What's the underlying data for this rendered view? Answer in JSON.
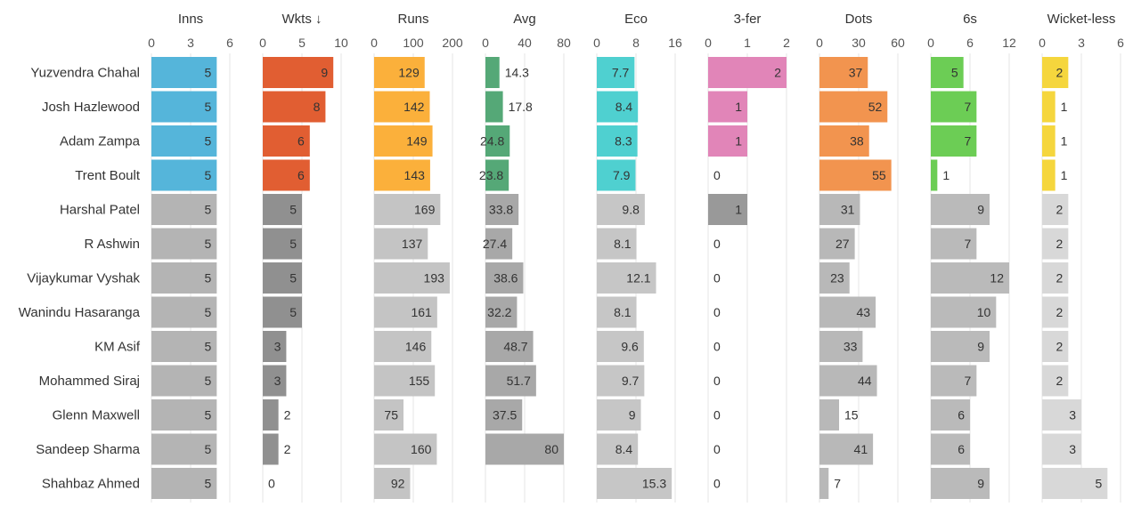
{
  "chart_data": {
    "type": "table",
    "players": [
      "Yuzvendra Chahal",
      "Josh Hazlewood",
      "Adam Zampa",
      "Trent Boult",
      "Harshal Patel",
      "R Ashwin",
      "Vijaykumar Vyshak",
      "Wanindu Hasaranga",
      "KM Asif",
      "Mohammed Siraj",
      "Glenn Maxwell",
      "Sandeep Sharma",
      "Shahbaz Ahmed"
    ],
    "columns": [
      {
        "label": "Inns",
        "max": 6,
        "ticks": [
          0,
          3,
          6
        ],
        "labels": [
          "0",
          "3",
          "6"
        ],
        "values": [
          5,
          5,
          5,
          5,
          5,
          5,
          5,
          5,
          5,
          5,
          5,
          5,
          5
        ],
        "display": [
          "5",
          "5",
          "5",
          "5",
          "5",
          "5",
          "5",
          "5",
          "5",
          "5",
          "5",
          "5",
          "5"
        ],
        "highlight_color": "#55b5da",
        "gray_colors": [
          "#b4b4b4"
        ]
      },
      {
        "label": "Wkts ↓",
        "max": 10,
        "ticks": [
          0,
          5,
          10
        ],
        "labels": [
          "0",
          "5",
          "10"
        ],
        "values": [
          9,
          8,
          6,
          6,
          5,
          5,
          5,
          5,
          3,
          3,
          2,
          2,
          0
        ],
        "display": [
          "9",
          "8",
          "6",
          "6",
          "5",
          "5",
          "5",
          "5",
          "3",
          "3",
          "2",
          "2",
          "0"
        ],
        "highlight_color": "#e15e32",
        "gray_colors": [
          "#909090"
        ]
      },
      {
        "label": "Runs",
        "max": 200,
        "ticks": [
          0,
          100,
          200
        ],
        "labels": [
          "0",
          "100",
          "200"
        ],
        "values": [
          129,
          142,
          149,
          143,
          169,
          137,
          193,
          161,
          146,
          155,
          75,
          160,
          92
        ],
        "display": [
          "129",
          "142",
          "149",
          "143",
          "169",
          "137",
          "193",
          "161",
          "146",
          "155",
          "75",
          "160",
          "92"
        ],
        "highlight_color": "#fbb03b",
        "gray_colors": [
          "#c4c4c4"
        ]
      },
      {
        "label": "Avg",
        "max": 80,
        "ticks": [
          0,
          40,
          80
        ],
        "labels": [
          "0",
          "40",
          "80"
        ],
        "values": [
          14.3,
          17.8,
          24.8,
          23.8,
          33.8,
          27.4,
          38.6,
          32.2,
          48.7,
          51.7,
          37.5,
          80,
          null
        ],
        "display": [
          "14.3",
          "17.8",
          "24.8",
          "23.8",
          "33.8",
          "27.4",
          "38.6",
          "32.2",
          "48.7",
          "51.7",
          "37.5",
          "80",
          ""
        ],
        "highlight_color": "#55a877",
        "gray_colors": [
          "#a8a8a8"
        ]
      },
      {
        "label": "Eco",
        "max": 16,
        "ticks": [
          0,
          8,
          16
        ],
        "labels": [
          "0",
          "8",
          "16"
        ],
        "values": [
          7.7,
          8.4,
          8.3,
          7.9,
          9.8,
          8.1,
          12.1,
          8.1,
          9.6,
          9.7,
          9,
          8.4,
          15.3
        ],
        "display": [
          "7.7",
          "8.4",
          "8.3",
          "7.9",
          "9.8",
          "8.1",
          "12.1",
          "8.1",
          "9.6",
          "9.7",
          "9",
          "8.4",
          "15.3"
        ],
        "highlight_color": "#4fd0d0",
        "gray_colors": [
          "#c6c6c6"
        ]
      },
      {
        "label": "3-fer",
        "max": 2,
        "ticks": [
          0,
          1,
          2
        ],
        "labels": [
          "0",
          "1",
          "2"
        ],
        "values": [
          2,
          1,
          1,
          0,
          1,
          0,
          0,
          0,
          0,
          0,
          0,
          0,
          0
        ],
        "display": [
          "2",
          "1",
          "1",
          "0",
          "1",
          "0",
          "0",
          "0",
          "0",
          "0",
          "0",
          "0",
          "0"
        ],
        "highlight_color": "#e185b8",
        "gray_colors": [
          "#999999"
        ]
      },
      {
        "label": "Dots",
        "max": 60,
        "ticks": [
          0,
          30,
          60
        ],
        "labels": [
          "0",
          "30",
          "60"
        ],
        "values": [
          37,
          52,
          38,
          55,
          31,
          27,
          23,
          43,
          33,
          44,
          15,
          41,
          7
        ],
        "display": [
          "37",
          "52",
          "38",
          "55",
          "31",
          "27",
          "23",
          "43",
          "33",
          "44",
          "15",
          "41",
          "7"
        ],
        "highlight_color": "#f2944f",
        "gray_colors": [
          "#b8b8b8"
        ]
      },
      {
        "label": "6s",
        "max": 12,
        "ticks": [
          0,
          6,
          12
        ],
        "labels": [
          "0",
          "6",
          "12"
        ],
        "values": [
          5,
          7,
          7,
          1,
          9,
          7,
          12,
          10,
          9,
          7,
          6,
          6,
          9
        ],
        "display": [
          "5",
          "7",
          "7",
          "1",
          "9",
          "7",
          "12",
          "10",
          "9",
          "7",
          "6",
          "6",
          "9"
        ],
        "highlight_color": "#6ccd55",
        "gray_colors": [
          "#bababa"
        ]
      },
      {
        "label": "Wicket-less",
        "max": 6,
        "ticks": [
          0,
          3,
          6
        ],
        "labels": [
          "0",
          "3",
          "6"
        ],
        "values": [
          2,
          1,
          1,
          1,
          2,
          2,
          2,
          2,
          2,
          2,
          3,
          3,
          5
        ],
        "display": [
          "2",
          "1",
          "1",
          "1",
          "2",
          "2",
          "2",
          "2",
          "2",
          "2",
          "3",
          "3",
          "5"
        ],
        "highlight_color": "#f5d63d",
        "gray_colors": [
          "#d8d8d8"
        ]
      }
    ],
    "highlighted_rows": 4,
    "grid": true,
    "legend": "none"
  }
}
